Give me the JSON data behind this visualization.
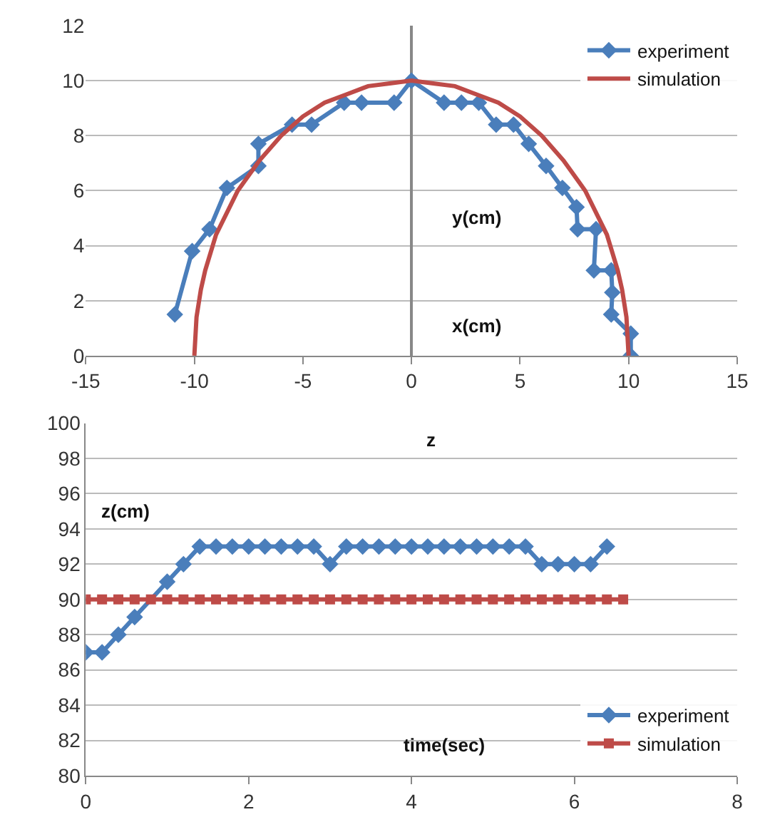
{
  "chart_data": [
    {
      "type": "line",
      "xlabel": "x(cm)",
      "ylabel": "y(cm)",
      "xlim": [
        -15,
        15
      ],
      "xticks": [
        -15,
        -10,
        -5,
        0,
        5,
        10,
        15
      ],
      "ylim": [
        0,
        12
      ],
      "yticks": [
        0,
        2,
        4,
        6,
        8,
        10,
        12
      ],
      "grid": "y",
      "legend": "top right",
      "series": [
        {
          "name": "experiment",
          "color": "#4a7ebb",
          "marker": "diamond",
          "x": [
            -10.9,
            -10.1,
            -9.3,
            -8.5,
            -7.05,
            -7.05,
            -5.5,
            -4.6,
            -3.1,
            -2.3,
            -0.8,
            0,
            1.5,
            2.3,
            3.1,
            3.9,
            4.7,
            5.4,
            6.2,
            6.95,
            7.6,
            7.65,
            8.5,
            8.4,
            9.2,
            9.25,
            9.2,
            10.1,
            10.1
          ],
          "values": [
            1.5,
            3.8,
            4.6,
            6.1,
            6.9,
            7.7,
            8.4,
            8.4,
            9.2,
            9.2,
            9.2,
            10,
            9.2,
            9.2,
            9.2,
            8.4,
            8.4,
            7.7,
            6.9,
            6.1,
            5.4,
            4.6,
            4.6,
            3.1,
            3.1,
            2.3,
            1.5,
            0.8,
            0
          ]
        },
        {
          "name": "simulation",
          "color": "#be4b48",
          "marker": "none",
          "x": [
            -10,
            -9.9,
            -9.7,
            -9.5,
            -9,
            -8,
            -7,
            -6,
            -5,
            -4,
            -3,
            -2,
            -1,
            0,
            1,
            2,
            3,
            4,
            5,
            6,
            7,
            8,
            9,
            9.5,
            9.7,
            9.9,
            10
          ],
          "values": [
            0,
            1.4,
            2.4,
            3.1,
            4.4,
            6,
            7.1,
            8,
            8.7,
            9.2,
            9.5,
            9.8,
            9.9,
            10,
            9.9,
            9.8,
            9.5,
            9.2,
            8.7,
            8,
            7.1,
            6,
            4.4,
            3.1,
            2.4,
            1.4,
            0
          ]
        }
      ]
    },
    {
      "type": "line",
      "title": "z",
      "xlabel": "time(sec)",
      "ylabel": "z(cm)",
      "xlim": [
        0,
        8
      ],
      "xticks": [
        0,
        2,
        4,
        6,
        8
      ],
      "ylim": [
        80,
        100
      ],
      "yticks": [
        80,
        82,
        84,
        86,
        88,
        90,
        92,
        94,
        96,
        98,
        100
      ],
      "grid": "y",
      "legend": "bottom right",
      "series": [
        {
          "name": "experiment",
          "color": "#4a7ebb",
          "marker": "diamond",
          "x": [
            0,
            0.2,
            0.4,
            0.6,
            0.8,
            1.0,
            1.2,
            1.4,
            1.6,
            1.8,
            2.0,
            2.2,
            2.4,
            2.6,
            2.8,
            3.0,
            3.2,
            3.4,
            3.6,
            3.8,
            4.0,
            4.2,
            4.4,
            4.6,
            4.8,
            5.0,
            5.2,
            5.4,
            5.6,
            5.8,
            6.0,
            6.2,
            6.4
          ],
          "values": [
            87,
            87,
            88,
            89,
            null,
            91,
            92,
            93,
            93,
            93,
            93,
            93,
            93,
            93,
            93,
            92,
            93,
            93,
            93,
            93,
            93,
            93,
            93,
            93,
            93,
            93,
            93,
            93,
            92,
            92,
            92,
            92,
            93
          ]
        },
        {
          "name": "simulation",
          "color": "#be4b48",
          "marker": "square",
          "x": [
            0,
            0.2,
            0.4,
            0.6,
            0.8,
            1.0,
            1.2,
            1.4,
            1.6,
            1.8,
            2.0,
            2.2,
            2.4,
            2.6,
            2.8,
            3.0,
            3.2,
            3.4,
            3.6,
            3.8,
            4.0,
            4.2,
            4.4,
            4.6,
            4.8,
            5.0,
            5.2,
            5.4,
            5.6,
            5.8,
            6.0,
            6.2,
            6.4,
            6.6
          ],
          "values": [
            90,
            90,
            90,
            90,
            90,
            90,
            90,
            90,
            90,
            90,
            90,
            90,
            90,
            90,
            90,
            90,
            90,
            90,
            90,
            90,
            90,
            90,
            90,
            90,
            90,
            90,
            90,
            90,
            90,
            90,
            90,
            90,
            90,
            90
          ]
        }
      ]
    }
  ]
}
